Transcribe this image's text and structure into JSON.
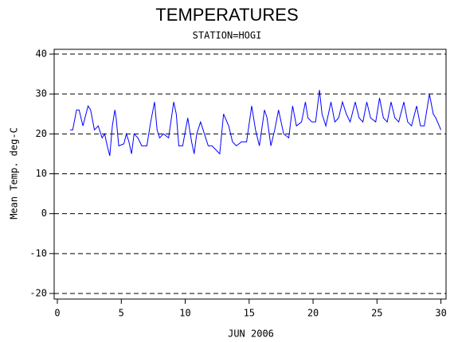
{
  "chart_data": {
    "type": "line",
    "title": "TEMPERATURES",
    "subtitle": "STATION=HOGI",
    "xlabel": "JUN 2006",
    "ylabel": "Mean Temp. deg-C",
    "xlim": [
      -0.25,
      30.4
    ],
    "ylim": [
      -21.4,
      41.2
    ],
    "xticks": [
      0,
      5,
      10,
      15,
      20,
      25,
      30
    ],
    "yticks": [
      -20,
      -10,
      0,
      10,
      20,
      30,
      40
    ],
    "grid": true,
    "x": [
      1.0,
      1.2,
      1.5,
      1.7,
      2.0,
      2.4,
      2.6,
      2.9,
      3.2,
      3.5,
      3.7,
      3.9,
      4.1,
      4.3,
      4.5,
      4.6,
      4.8,
      5.2,
      5.4,
      5.6,
      5.8,
      6.0,
      6.3,
      6.6,
      7.0,
      7.3,
      7.6,
      7.8,
      8.0,
      8.3,
      8.7,
      9.1,
      9.3,
      9.5,
      9.8,
      10.2,
      10.5,
      10.7,
      10.9,
      11.2,
      11.5,
      11.8,
      12.1,
      12.4,
      12.7,
      13.0,
      13.4,
      13.7,
      14.0,
      14.4,
      14.8,
      15.2,
      15.5,
      15.8,
      16.2,
      16.4,
      16.7,
      17.0,
      17.3,
      17.7,
      18.1,
      18.4,
      18.7,
      19.1,
      19.4,
      19.6,
      19.9,
      20.2,
      20.5,
      20.7,
      21.0,
      21.4,
      21.7,
      22.0,
      22.3,
      22.6,
      22.9,
      23.3,
      23.6,
      23.9,
      24.2,
      24.5,
      24.9,
      25.2,
      25.5,
      25.8,
      26.1,
      26.4,
      26.7,
      27.1,
      27.4,
      27.7,
      28.1,
      28.4,
      28.7,
      29.1,
      29.4,
      29.6,
      30.0
    ],
    "series": [
      {
        "color": "#0000ff",
        "values": [
          21,
          21,
          26,
          26,
          22,
          27,
          26,
          21,
          22,
          19,
          20,
          17,
          14.5,
          22,
          26,
          24,
          17,
          17.5,
          20,
          18,
          15,
          20,
          19,
          17,
          17,
          23,
          28,
          21,
          19,
          20,
          19,
          28,
          25,
          17,
          17,
          24,
          18,
          15,
          20,
          23,
          20,
          17,
          17,
          16,
          15,
          25,
          22,
          18,
          17,
          18,
          18,
          27,
          21,
          17,
          26,
          24,
          17,
          21,
          26,
          20,
          19,
          27,
          22,
          23,
          28,
          24,
          23,
          23,
          31,
          25,
          22,
          28,
          23,
          24,
          28,
          25,
          23,
          28,
          24,
          23,
          28,
          24,
          23,
          29,
          24,
          23,
          28,
          24,
          23,
          28,
          23,
          22,
          27,
          22,
          22,
          30,
          25,
          24,
          21
        ]
      }
    ]
  }
}
